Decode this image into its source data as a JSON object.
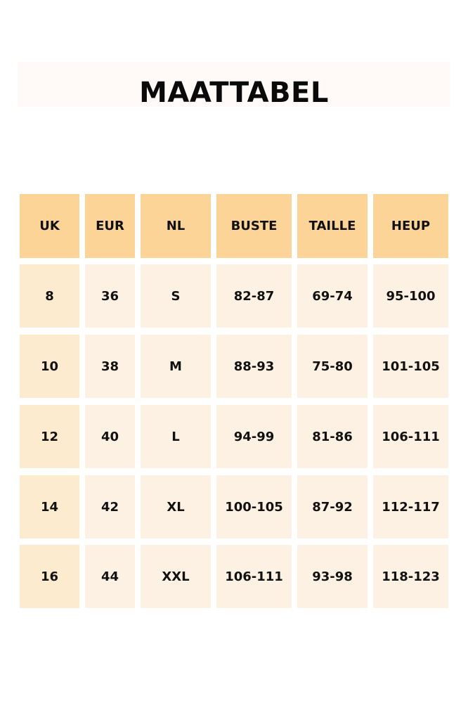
{
  "title": "MAATTABEL",
  "colors": {
    "header": "#fdd497",
    "first_column": "#fcebcf",
    "body": "#fdf1e3"
  },
  "table": {
    "headers": [
      "UK",
      "EUR",
      "NL",
      "BUSTE",
      "TAILLE",
      "HEUP"
    ],
    "rows": [
      [
        "8",
        "36",
        "S",
        "82-87",
        "69-74",
        "95-100"
      ],
      [
        "10",
        "38",
        "M",
        "88-93",
        "75-80",
        "101-105"
      ],
      [
        "12",
        "40",
        "L",
        "94-99",
        "81-86",
        "106-111"
      ],
      [
        "14",
        "42",
        "XL",
        "100-105",
        "87-92",
        "112-117"
      ],
      [
        "16",
        "44",
        "XXL",
        "106-111",
        "93-98",
        "118-123"
      ]
    ]
  }
}
